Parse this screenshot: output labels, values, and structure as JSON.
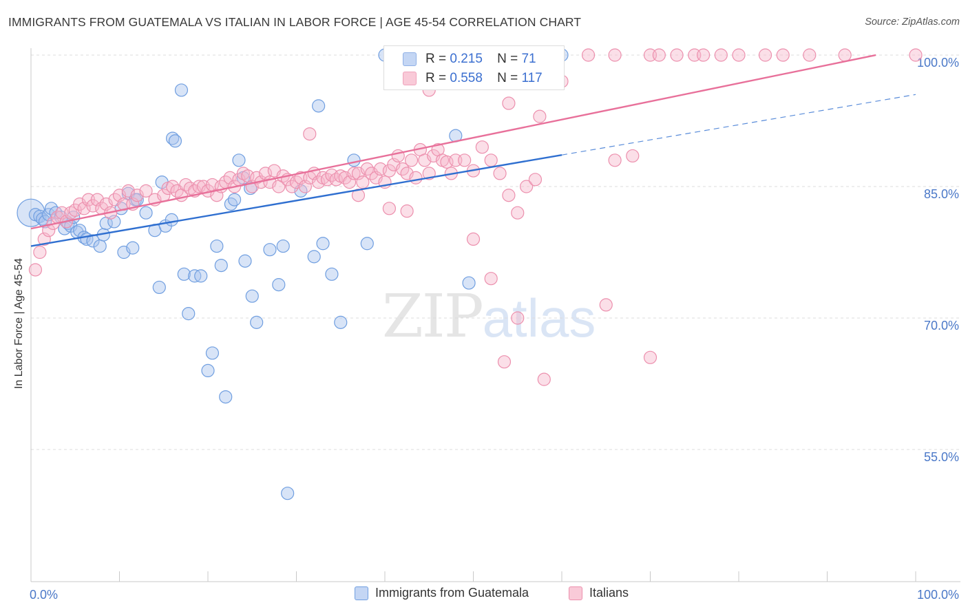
{
  "title": "IMMIGRANTS FROM GUATEMALA VS ITALIAN IN LABOR FORCE | AGE 45-54 CORRELATION CHART",
  "source": "Source: ZipAtlas.com",
  "watermark": {
    "zip": "ZIP",
    "atlas": "atlas"
  },
  "legend_top": [
    {
      "r_label": "R =",
      "r_value": "0.215",
      "n_label": "N =",
      "n_value": "71",
      "color": "#a9c4ee"
    },
    {
      "r_label": "R =",
      "r_value": "0.558",
      "n_label": "N =",
      "n_value": "117",
      "color": "#f6b8cb"
    }
  ],
  "chart_data": {
    "type": "scatter",
    "title": "IMMIGRANTS FROM GUATEMALA VS ITALIAN IN LABOR FORCE | AGE 45-54 CORRELATION CHART",
    "xlabel": "",
    "ylabel": "In Labor Force | Age 45-54",
    "x_tick_labels": [
      "0.0%",
      "100.0%"
    ],
    "y_tick_labels": [
      "55.0%",
      "70.0%",
      "85.0%",
      "100.0%"
    ],
    "y_ticks": [
      55,
      70,
      85,
      100
    ],
    "xlim": [
      0,
      100
    ],
    "ylim": [
      40,
      101
    ],
    "grid": true,
    "legend_position": "bottom",
    "series": [
      {
        "name": "Immigrants from Guatemala",
        "color": "#a9c4ee",
        "stroke": "#6f9ee0",
        "trend_color": "#2f6fd0",
        "R": 0.215,
        "N": 71,
        "trend": {
          "x0": 0,
          "y0": 78.2,
          "x1": 60,
          "y1": 88.6,
          "dash_x1": 100,
          "dash_y1": 95.5
        },
        "points": [
          [
            0,
            82.0
          ],
          [
            0.5,
            81.8
          ],
          [
            1.0,
            81.6
          ],
          [
            1.3,
            81.3
          ],
          [
            1.6,
            81.0
          ],
          [
            2.0,
            81.8
          ],
          [
            2.3,
            82.5
          ],
          [
            2.8,
            82.0
          ],
          [
            3.4,
            81.5
          ],
          [
            3.8,
            80.2
          ],
          [
            4.2,
            80.8
          ],
          [
            4.5,
            80.5
          ],
          [
            4.8,
            81.5
          ],
          [
            5.2,
            79.8
          ],
          [
            5.5,
            80.0
          ],
          [
            6.0,
            79.2
          ],
          [
            6.3,
            79.0
          ],
          [
            7.0,
            78.8
          ],
          [
            7.8,
            78.2
          ],
          [
            8.2,
            79.5
          ],
          [
            8.5,
            80.8
          ],
          [
            9.4,
            81.0
          ],
          [
            10.2,
            82.5
          ],
          [
            11.0,
            84.2
          ],
          [
            11.8,
            83.5
          ],
          [
            12.0,
            83.5
          ],
          [
            10.5,
            77.5
          ],
          [
            11.5,
            78.0
          ],
          [
            13.0,
            82.0
          ],
          [
            14.0,
            80.0
          ],
          [
            14.8,
            85.5
          ],
          [
            15.2,
            80.5
          ],
          [
            15.9,
            81.2
          ],
          [
            16.0,
            90.5
          ],
          [
            16.3,
            90.2
          ],
          [
            17.0,
            96.0
          ],
          [
            17.3,
            75.0
          ],
          [
            18.5,
            74.8
          ],
          [
            19.2,
            74.8
          ],
          [
            21.0,
            78.2
          ],
          [
            21.5,
            76.0
          ],
          [
            22.6,
            83.0
          ],
          [
            23.0,
            83.5
          ],
          [
            23.5,
            88.0
          ],
          [
            24.0,
            86.0
          ],
          [
            24.8,
            84.8
          ],
          [
            25.0,
            72.5
          ],
          [
            25.5,
            69.5
          ],
          [
            27.0,
            77.8
          ],
          [
            28.0,
            73.8
          ],
          [
            28.5,
            78.2
          ],
          [
            29.0,
            50.0
          ],
          [
            30.5,
            84.5
          ],
          [
            32.0,
            77.0
          ],
          [
            32.5,
            94.2
          ],
          [
            33.0,
            78.5
          ],
          [
            35.0,
            69.5
          ],
          [
            36.5,
            88.0
          ],
          [
            38.0,
            78.5
          ],
          [
            40.0,
            100.0
          ],
          [
            44.0,
            100.0
          ],
          [
            48.0,
            90.8
          ],
          [
            49.5,
            74.0
          ],
          [
            60.0,
            100.0
          ],
          [
            20.5,
            66.0
          ],
          [
            20.0,
            64.0
          ],
          [
            22.0,
            61.0
          ],
          [
            14.5,
            73.5
          ],
          [
            17.8,
            70.5
          ],
          [
            24.2,
            76.5
          ],
          [
            34.0,
            75.0
          ]
        ]
      },
      {
        "name": "Italians",
        "color": "#f6b8cb",
        "stroke": "#ec8fad",
        "trend_color": "#e8709a",
        "R": 0.558,
        "N": 117,
        "trend": {
          "x0": 0,
          "y0": 80.2,
          "x1": 95.5,
          "y1": 100.0
        },
        "points": [
          [
            0.5,
            75.5
          ],
          [
            1.0,
            77.5
          ],
          [
            1.5,
            79.0
          ],
          [
            2.0,
            80.0
          ],
          [
            2.5,
            80.8
          ],
          [
            3.0,
            81.5
          ],
          [
            3.5,
            82.0
          ],
          [
            4.0,
            81.0
          ],
          [
            4.5,
            82.0
          ],
          [
            5.0,
            82.3
          ],
          [
            5.5,
            83.0
          ],
          [
            6.0,
            82.5
          ],
          [
            6.5,
            83.5
          ],
          [
            7.0,
            82.8
          ],
          [
            7.5,
            83.5
          ],
          [
            8.0,
            82.5
          ],
          [
            8.5,
            83.0
          ],
          [
            9.0,
            82.0
          ],
          [
            9.5,
            83.5
          ],
          [
            10.0,
            84.0
          ],
          [
            10.5,
            83.0
          ],
          [
            11.0,
            84.5
          ],
          [
            11.5,
            83.0
          ],
          [
            12.0,
            84.0
          ],
          [
            13.0,
            84.5
          ],
          [
            14.0,
            83.5
          ],
          [
            15.0,
            84.0
          ],
          [
            15.5,
            84.8
          ],
          [
            16.0,
            85.0
          ],
          [
            16.5,
            84.5
          ],
          [
            17.0,
            84.0
          ],
          [
            17.5,
            85.2
          ],
          [
            18.0,
            84.8
          ],
          [
            18.5,
            84.5
          ],
          [
            19.0,
            85.0
          ],
          [
            19.5,
            85.0
          ],
          [
            20.0,
            84.5
          ],
          [
            20.5,
            85.2
          ],
          [
            21.0,
            84.0
          ],
          [
            21.5,
            85.0
          ],
          [
            22.0,
            85.5
          ],
          [
            22.5,
            86.0
          ],
          [
            23.0,
            85.0
          ],
          [
            23.5,
            85.8
          ],
          [
            24.0,
            86.5
          ],
          [
            24.5,
            86.2
          ],
          [
            25.0,
            85.0
          ],
          [
            25.5,
            86.0
          ],
          [
            26.0,
            85.5
          ],
          [
            26.5,
            86.5
          ],
          [
            27.0,
            85.5
          ],
          [
            27.5,
            86.8
          ],
          [
            28.0,
            85.0
          ],
          [
            28.5,
            86.2
          ],
          [
            29.0,
            85.8
          ],
          [
            29.5,
            85.0
          ],
          [
            30.0,
            85.5
          ],
          [
            30.5,
            86.0
          ],
          [
            31.0,
            85.0
          ],
          [
            31.5,
            86.0
          ],
          [
            32.0,
            86.5
          ],
          [
            32.5,
            85.5
          ],
          [
            33.0,
            86.0
          ],
          [
            33.5,
            85.8
          ],
          [
            34.0,
            86.3
          ],
          [
            34.5,
            85.8
          ],
          [
            35.0,
            86.2
          ],
          [
            35.5,
            86.0
          ],
          [
            36.0,
            85.5
          ],
          [
            36.5,
            86.5
          ],
          [
            37.0,
            86.5
          ],
          [
            37.5,
            85.5
          ],
          [
            38.0,
            87.0
          ],
          [
            38.5,
            86.5
          ],
          [
            39.0,
            86.0
          ],
          [
            39.5,
            87.0
          ],
          [
            40.0,
            85.5
          ],
          [
            40.5,
            86.8
          ],
          [
            41.0,
            87.5
          ],
          [
            41.5,
            88.5
          ],
          [
            42.0,
            87.0
          ],
          [
            42.5,
            86.5
          ],
          [
            43.0,
            88.0
          ],
          [
            43.5,
            86.0
          ],
          [
            44.0,
            89.2
          ],
          [
            44.5,
            88.0
          ],
          [
            45.0,
            86.5
          ],
          [
            45.5,
            88.5
          ],
          [
            46.0,
            89.2
          ],
          [
            46.5,
            88.0
          ],
          [
            47.0,
            87.8
          ],
          [
            47.5,
            86.5
          ],
          [
            48.0,
            88.0
          ],
          [
            49.0,
            88.0
          ],
          [
            50.0,
            86.8
          ],
          [
            51.0,
            89.5
          ],
          [
            52.0,
            88.0
          ],
          [
            53.0,
            86.5
          ],
          [
            54.0,
            84.0
          ],
          [
            55.0,
            82.0
          ],
          [
            56.0,
            85.0
          ],
          [
            57.0,
            85.8
          ],
          [
            42.5,
            82.2
          ],
          [
            37.0,
            84.0
          ],
          [
            31.5,
            91.0
          ],
          [
            45.0,
            96.0
          ],
          [
            57.5,
            93.0
          ],
          [
            60.0,
            97.0
          ],
          [
            66.0,
            88.0
          ],
          [
            68.0,
            88.5
          ],
          [
            50.0,
            79.0
          ],
          [
            40.5,
            82.5
          ],
          [
            52.0,
            74.5
          ],
          [
            55.0,
            70.0
          ],
          [
            58.0,
            63.0
          ],
          [
            65.0,
            71.5
          ],
          [
            70.0,
            65.5
          ],
          [
            53.5,
            65.0
          ],
          [
            54.0,
            94.5
          ]
        ],
        "top_points": [
          56.0,
          63.0,
          66.0,
          70.0,
          73.0,
          75.0,
          78.0,
          80.0,
          85.0,
          88.0,
          92.0,
          100.0,
          76.0,
          71.0,
          83.0
        ]
      }
    ]
  },
  "legend_bottom": [
    {
      "label": "Immigrants from Guatemala",
      "color": "#a9c4ee",
      "stroke": "#6f9ee0"
    },
    {
      "label": "Italians",
      "color": "#f6b8cb",
      "stroke": "#ec8fad"
    }
  ]
}
